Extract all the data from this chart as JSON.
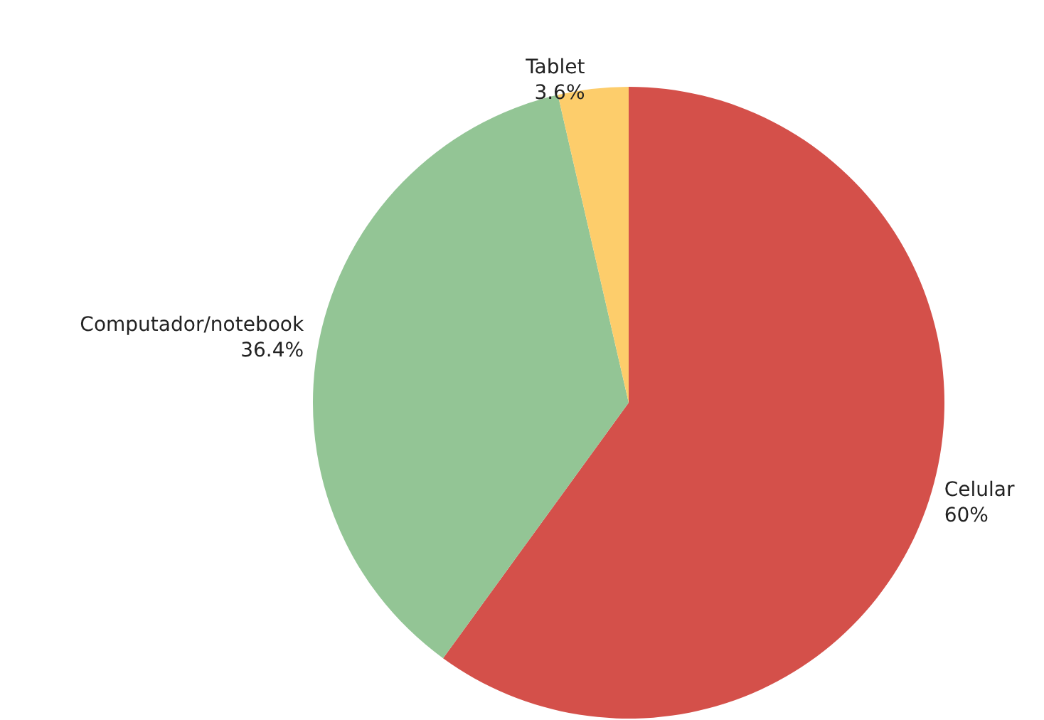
{
  "chart_data": {
    "type": "pie",
    "categories": [
      "Celular",
      "Computador/notebook",
      "Tablet"
    ],
    "values": [
      60,
      36.4,
      3.6
    ],
    "colors": [
      "#d4504a",
      "#93c595",
      "#fdcd6b"
    ],
    "value_labels": [
      "60%",
      "36.4%",
      "3.6%"
    ],
    "legend": false
  }
}
